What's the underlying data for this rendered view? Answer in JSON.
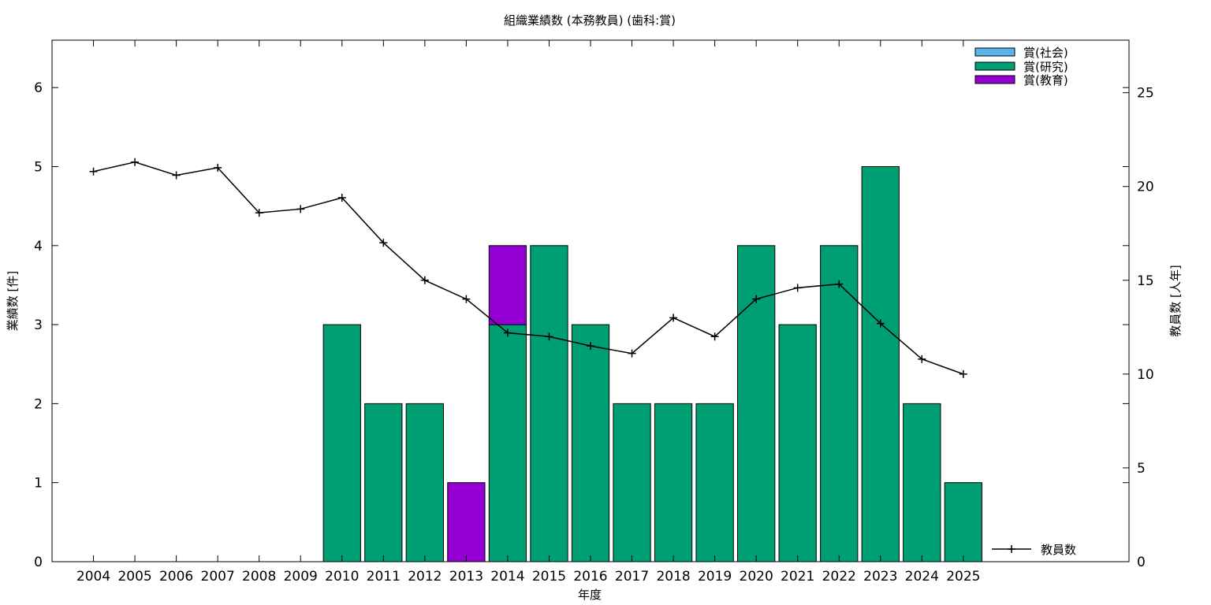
{
  "chart_data": {
    "type": "bar",
    "title": "組織業績数 (本務教員) (歯科:賞)",
    "xlabel": "年度",
    "ylabel": "業績数 [件]",
    "y2label": "教員数 [人年]",
    "categories": [
      "2004",
      "2005",
      "2006",
      "2007",
      "2008",
      "2009",
      "2010",
      "2011",
      "2012",
      "2013",
      "2014",
      "2015",
      "2016",
      "2017",
      "2018",
      "2019",
      "2020",
      "2021",
      "2022",
      "2023",
      "2024",
      "2025"
    ],
    "stacked": true,
    "series": [
      {
        "name": "賞(社会)",
        "color": "#56b4e9",
        "values": [
          0,
          0,
          0,
          0,
          0,
          0,
          0,
          0,
          0,
          0,
          0,
          0,
          0,
          0,
          0,
          0,
          0,
          0,
          0,
          0,
          0,
          0
        ]
      },
      {
        "name": "賞(研究)",
        "color": "#009e73",
        "values": [
          0,
          0,
          0,
          0,
          0,
          0,
          3,
          2,
          2,
          0,
          3,
          4,
          3,
          2,
          2,
          2,
          4,
          3,
          4,
          5,
          2,
          1
        ]
      },
      {
        "name": "賞(教育)",
        "color": "#9400d3",
        "values": [
          0,
          0,
          0,
          0,
          0,
          0,
          0,
          0,
          0,
          1,
          1,
          0,
          0,
          0,
          0,
          0,
          0,
          0,
          0,
          0,
          0,
          0
        ]
      }
    ],
    "line_series": {
      "name": "教員数",
      "axis": "y2",
      "values": [
        20.8,
        21.3,
        20.6,
        21.0,
        18.6,
        18.8,
        19.4,
        17.0,
        15.0,
        14.0,
        12.2,
        12.0,
        11.5,
        11.1,
        13.0,
        12.0,
        14.0,
        14.6,
        14.8,
        12.7,
        10.8,
        10.0
      ]
    },
    "ylim": [
      0,
      6.6
    ],
    "yticks": [
      0,
      1,
      2,
      3,
      4,
      5,
      6
    ],
    "y2lim": [
      0,
      27.8
    ],
    "y2ticks": [
      0,
      5,
      10,
      15,
      20,
      25
    ],
    "xlim_count": 26,
    "legend_position": "top-right",
    "line_legend_position": "bottom-right",
    "grid": false
  }
}
